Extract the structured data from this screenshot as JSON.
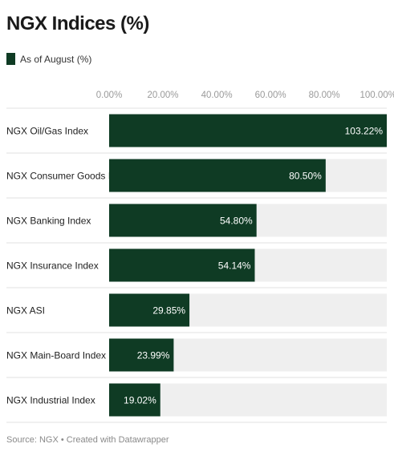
{
  "chart_data": {
    "type": "bar",
    "orientation": "horizontal",
    "title": "NGX Indices (%)",
    "legend": [
      "As of August (%)"
    ],
    "legend_position": "top-left",
    "categories": [
      "NGX Oil/Gas Index",
      "NGX Consumer Goods Index",
      "NGX Banking Index",
      "NGX Insurance Index",
      "NGX ASI",
      "NGX Main-Board Index",
      "NGX Industrial Index"
    ],
    "series": [
      {
        "name": "As of August (%)",
        "values": [
          103.22,
          80.5,
          54.8,
          54.14,
          29.85,
          23.99,
          19.02
        ],
        "labels": [
          "103.22%",
          "80.50%",
          "54.80%",
          "54.14%",
          "29.85%",
          "23.99%",
          "19.02%"
        ]
      }
    ],
    "xticks": [
      "0.00%",
      "20.00%",
      "40.00%",
      "60.00%",
      "80.00%",
      "100.00%"
    ],
    "xtick_values": [
      0,
      20,
      40,
      60,
      80,
      100
    ],
    "xlim": [
      0,
      103.22
    ],
    "grid": false,
    "colors": {
      "bar": "#0f3b24",
      "track": "#efefef",
      "label": "#ffffff",
      "tick": "#9a9a9a",
      "separator": "#e2e2e2"
    },
    "source": "Source: NGX • Created with Datawrapper"
  }
}
